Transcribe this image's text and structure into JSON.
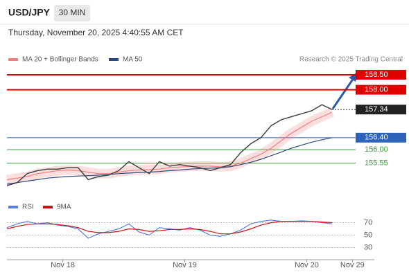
{
  "header": {
    "symbol": "USD/JPY",
    "interval": "30 MIN",
    "timestamp": "Thursday, November 20, 2025 4:40:55 AM CET"
  },
  "chart_data": [
    {
      "type": "line",
      "source": "Research © 2025 Trading Central",
      "x": [
        -11,
        -9,
        -7,
        -5,
        -3,
        -1,
        1,
        3,
        5,
        7,
        9,
        11,
        13,
        15,
        17,
        19,
        21,
        23,
        25,
        27,
        29,
        31,
        33,
        35,
        37,
        39,
        41,
        43,
        45,
        47,
        49,
        51,
        53
      ],
      "xlim": [
        -11,
        62
      ],
      "ylim": [
        154.5,
        158.8
      ],
      "price": {
        "color": "#444444",
        "values": [
          154.8,
          154.9,
          155.2,
          155.3,
          155.35,
          155.35,
          155.4,
          155.4,
          155.0,
          155.1,
          155.15,
          155.3,
          155.6,
          155.4,
          155.2,
          155.6,
          155.45,
          155.5,
          155.45,
          155.4,
          155.3,
          155.4,
          155.5,
          155.9,
          156.2,
          156.4,
          156.8,
          157.0,
          157.1,
          157.2,
          157.3,
          157.5,
          157.34
        ]
      },
      "series": [
        {
          "name": "MA 20 + Bollinger Bands",
          "color": "#f08080",
          "values": [
            155.0,
            155.05,
            155.1,
            155.2,
            155.25,
            155.3,
            155.32,
            155.3,
            155.25,
            155.2,
            155.2,
            155.25,
            155.3,
            155.32,
            155.33,
            155.35,
            155.4,
            155.42,
            155.44,
            155.45,
            155.45,
            155.43,
            155.45,
            155.55,
            155.7,
            155.85,
            156.05,
            156.3,
            156.55,
            156.75,
            156.95,
            157.1,
            157.25
          ]
        },
        {
          "name": "MA 50",
          "color": "#2c4a7c",
          "values": [
            154.85,
            154.9,
            154.95,
            155.0,
            155.05,
            155.08,
            155.1,
            155.12,
            155.13,
            155.15,
            155.17,
            155.2,
            155.22,
            155.24,
            155.25,
            155.27,
            155.3,
            155.32,
            155.35,
            155.37,
            155.38,
            155.4,
            155.43,
            155.5,
            155.58,
            155.68,
            155.8,
            155.92,
            156.05,
            156.15,
            156.25,
            156.33,
            156.4
          ]
        }
      ],
      "levels": [
        {
          "value": 158.5,
          "label": "158.50",
          "color": "#e00000",
          "style": "box"
        },
        {
          "value": 158.0,
          "label": "158.00",
          "color": "#e00000",
          "style": "box"
        },
        {
          "value": 157.34,
          "label": "157.34",
          "color": "#222222",
          "style": "box",
          "dotted": true
        },
        {
          "value": 156.4,
          "label": "156.40",
          "color": "#2d63b8",
          "style": "box"
        },
        {
          "value": 156.0,
          "label": "156.00",
          "color": "#3a9a3a",
          "style": "text"
        },
        {
          "value": 155.55,
          "label": "155.55",
          "color": "#3a9a3a",
          "style": "text"
        }
      ]
    },
    {
      "type": "line",
      "x": [
        -11,
        -9,
        -7,
        -5,
        -3,
        -1,
        1,
        3,
        5,
        7,
        9,
        11,
        13,
        15,
        17,
        19,
        21,
        23,
        25,
        27,
        29,
        31,
        33,
        35,
        37,
        39,
        41,
        43,
        45,
        47,
        49,
        51,
        53
      ],
      "xlim": [
        -11,
        62
      ],
      "ylim": [
        15,
        100
      ],
      "yticks": [
        70,
        50,
        30
      ],
      "xticks": [
        {
          "value": 0,
          "label": "Nov 18"
        },
        {
          "value": 24,
          "label": "Nov 19"
        },
        {
          "value": 48,
          "label": "Nov 20"
        },
        {
          "value": 57,
          "label": "Nov 29"
        }
      ],
      "series": [
        {
          "name": "RSI",
          "color": "#5b7fd6",
          "values": [
            62,
            68,
            72,
            68,
            70,
            66,
            64,
            60,
            45,
            52,
            56,
            60,
            68,
            55,
            50,
            62,
            60,
            58,
            62,
            58,
            50,
            48,
            52,
            58,
            68,
            72,
            74,
            72,
            72,
            73,
            72,
            70,
            68
          ]
        },
        {
          "name": "9MA",
          "color": "#d01010",
          "values": [
            60,
            64,
            67,
            68,
            68,
            67,
            65,
            62,
            56,
            54,
            54,
            56,
            60,
            59,
            56,
            57,
            59,
            59,
            60,
            59,
            56,
            52,
            52,
            55,
            60,
            66,
            70,
            72,
            72,
            72,
            72,
            71,
            70
          ]
        }
      ]
    }
  ]
}
